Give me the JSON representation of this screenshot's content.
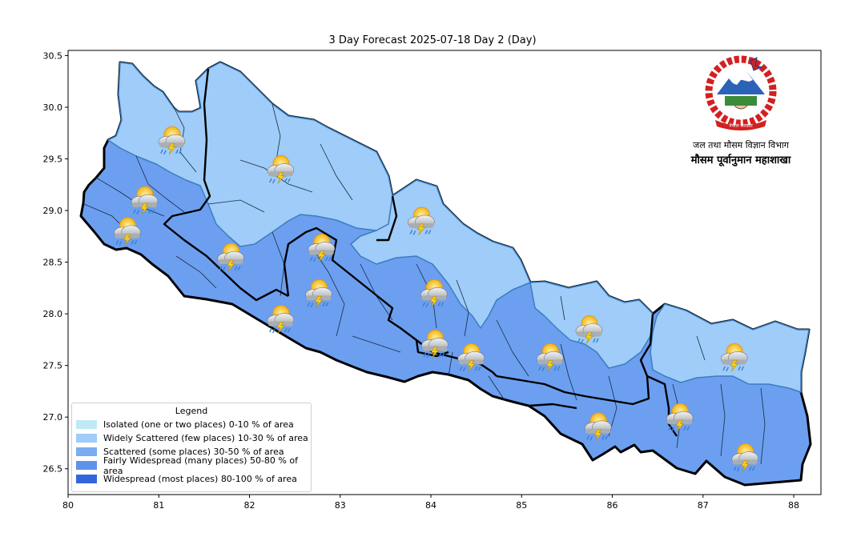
{
  "title": "3 Day Forecast 2025-07-18 Day 2 (Day)",
  "axes": {
    "x_ticks": [
      "80",
      "81",
      "82",
      "83",
      "84",
      "85",
      "86",
      "87",
      "88"
    ],
    "y_ticks": [
      "30.5",
      "30.0",
      "29.5",
      "29.0",
      "28.5",
      "28.0",
      "27.5",
      "27.0",
      "26.5"
    ],
    "xlim": [
      80.0,
      88.3
    ],
    "ylim": [
      26.25,
      30.55
    ]
  },
  "legend": {
    "title": "Legend",
    "items": [
      {
        "label": "Isolated (one or two places)  0-10 % of area",
        "color": "#bfeaf5"
      },
      {
        "label": "Widely Scattered (few places) 10-30 % of area",
        "color": "#9fccf8"
      },
      {
        "label": "Scattered (some places) 30-50  % of area",
        "color": "#7aacf0"
      },
      {
        "label": "Fairly Widespread (many places) 50-80 % of area",
        "color": "#5f93ea"
      },
      {
        "label": "Widespread (most places) 80-100 % of area",
        "color": "#3267dc"
      }
    ]
  },
  "logo": {
    "line1": "जल तथा मौसम विज्ञान विभाग",
    "line2": "मौसम पूर्वानुमान महाशाखा",
    "emblem_text": "नेपाल सरकार"
  },
  "map": {
    "region_colors": {
      "widely_scattered": "#9fccf8",
      "fairly_widespread": "#6c9ff0"
    },
    "weather_icons": [
      {
        "lon": 81.13,
        "lat": 29.68,
        "icon": "thunderstorm-rain-icon"
      },
      {
        "lon": 82.33,
        "lat": 29.4,
        "icon": "thunderstorm-rain-icon"
      },
      {
        "lon": 80.83,
        "lat": 29.1,
        "icon": "thunderstorm-rain-icon"
      },
      {
        "lon": 80.64,
        "lat": 28.8,
        "icon": "thunderstorm-rain-icon"
      },
      {
        "lon": 81.78,
        "lat": 28.55,
        "icon": "thunderstorm-rain-icon"
      },
      {
        "lon": 82.78,
        "lat": 28.64,
        "icon": "thunderstorm-rain-icon"
      },
      {
        "lon": 83.88,
        "lat": 28.9,
        "icon": "thunderstorm-rain-icon"
      },
      {
        "lon": 82.75,
        "lat": 28.2,
        "icon": "thunderstorm-rain-icon"
      },
      {
        "lon": 84.02,
        "lat": 28.2,
        "icon": "thunderstorm-rain-icon"
      },
      {
        "lon": 82.33,
        "lat": 27.95,
        "icon": "thunderstorm-rain-icon"
      },
      {
        "lon": 84.03,
        "lat": 27.71,
        "icon": "thunderstorm-rain-icon"
      },
      {
        "lon": 84.43,
        "lat": 27.58,
        "icon": "thunderstorm-rain-icon"
      },
      {
        "lon": 85.3,
        "lat": 27.58,
        "icon": "thunderstorm-rain-icon"
      },
      {
        "lon": 85.73,
        "lat": 27.85,
        "icon": "thunderstorm-rain-icon"
      },
      {
        "lon": 87.33,
        "lat": 27.58,
        "icon": "thunderstorm-rain-icon"
      },
      {
        "lon": 86.73,
        "lat": 27.0,
        "icon": "thunderstorm-rain-icon"
      },
      {
        "lon": 85.83,
        "lat": 26.91,
        "icon": "thunderstorm-rain-icon"
      },
      {
        "lon": 87.45,
        "lat": 26.61,
        "icon": "thunderstorm-rain-icon"
      }
    ]
  }
}
